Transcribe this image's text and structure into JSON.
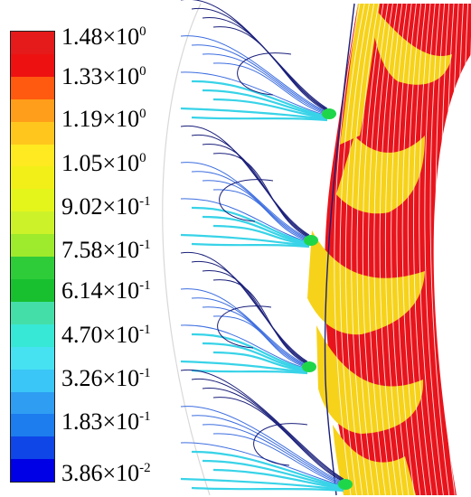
{
  "legend": {
    "ticks": [
      {
        "mantissa": "1.48×10",
        "exponent": "0"
      },
      {
        "mantissa": "1.33×10",
        "exponent": "0"
      },
      {
        "mantissa": "1.19×10",
        "exponent": "0"
      },
      {
        "mantissa": "1.05×10",
        "exponent": "0"
      },
      {
        "mantissa": "9.02×10",
        "exponent": "-1"
      },
      {
        "mantissa": "7.58×10",
        "exponent": "-1"
      },
      {
        "mantissa": "6.14×10",
        "exponent": "-1"
      },
      {
        "mantissa": "4.70×10",
        "exponent": "-1"
      },
      {
        "mantissa": "3.26×10",
        "exponent": "-1"
      },
      {
        "mantissa": "1.83×10",
        "exponent": "-1"
      },
      {
        "mantissa": "3.86×10",
        "exponent": "-2"
      }
    ],
    "bands": [
      "#e51a1a",
      "#ee1111",
      "#ff5a10",
      "#ff9e1a",
      "#ffc71e",
      "#ffe920",
      "#f2ef18",
      "#e4f51c",
      "#ccf22a",
      "#9eea2c",
      "#2fcc3a",
      "#18c030",
      "#44dfa8",
      "#38e8d6",
      "#46e2f2",
      "#3ac6f6",
      "#2e9df2",
      "#1d7cee",
      "#0f46e8",
      "#0000e6"
    ]
  },
  "colors": {
    "passage_red": "#e8141c",
    "passage_yellow": "#f6d21a",
    "inlet_dark": "#1a1f7a",
    "inlet_blue": "#3c6de0",
    "inlet_cyan": "#38d3e8",
    "throat_green": "#1fd64a",
    "streamline_white": "#ffffff"
  }
}
